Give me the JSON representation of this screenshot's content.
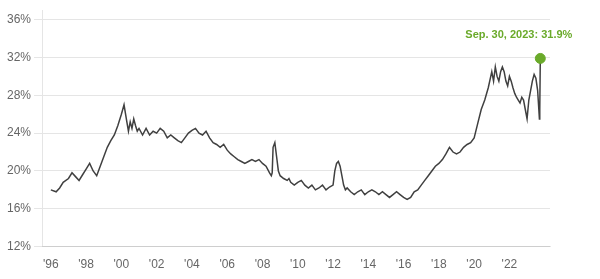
{
  "chart_data": {
    "type": "line",
    "x": [
      1996.0,
      1996.3,
      1996.5,
      1996.7,
      1997.0,
      1997.2,
      1997.4,
      1997.6,
      1997.8,
      1998.0,
      1998.2,
      1998.4,
      1998.6,
      1998.8,
      1999.0,
      1999.2,
      1999.4,
      1999.6,
      1999.8,
      2000.0,
      2000.15,
      2000.3,
      2000.4,
      2000.5,
      2000.6,
      2000.7,
      2000.8,
      2000.9,
      2001.0,
      2001.2,
      2001.4,
      2001.6,
      2001.8,
      2002.0,
      2002.2,
      2002.4,
      2002.6,
      2002.8,
      2003.0,
      2003.2,
      2003.4,
      2003.6,
      2003.8,
      2004.0,
      2004.2,
      2004.4,
      2004.6,
      2004.8,
      2005.0,
      2005.2,
      2005.4,
      2005.6,
      2005.8,
      2006.0,
      2006.2,
      2006.4,
      2006.6,
      2006.8,
      2007.0,
      2007.2,
      2007.4,
      2007.6,
      2007.8,
      2008.0,
      2008.2,
      2008.4,
      2008.5,
      2008.55,
      2008.6,
      2008.7,
      2008.8,
      2008.9,
      2009.0,
      2009.2,
      2009.4,
      2009.5,
      2009.6,
      2009.8,
      2010.0,
      2010.2,
      2010.4,
      2010.6,
      2010.8,
      2011.0,
      2011.2,
      2011.4,
      2011.6,
      2011.8,
      2012.0,
      2012.1,
      2012.2,
      2012.3,
      2012.4,
      2012.5,
      2012.6,
      2012.7,
      2012.8,
      2013.0,
      2013.2,
      2013.4,
      2013.6,
      2013.8,
      2014.0,
      2014.2,
      2014.4,
      2014.6,
      2014.8,
      2015.0,
      2015.2,
      2015.4,
      2015.6,
      2015.8,
      2016.0,
      2016.2,
      2016.4,
      2016.6,
      2016.8,
      2017.0,
      2017.2,
      2017.4,
      2017.6,
      2017.8,
      2018.0,
      2018.2,
      2018.4,
      2018.6,
      2018.8,
      2019.0,
      2019.2,
      2019.4,
      2019.6,
      2019.8,
      2020.0,
      2020.2,
      2020.4,
      2020.6,
      2020.8,
      2021.0,
      2021.1,
      2021.2,
      2021.3,
      2021.4,
      2021.5,
      2021.6,
      2021.7,
      2021.8,
      2021.9,
      2022.0,
      2022.1,
      2022.2,
      2022.3,
      2022.4,
      2022.5,
      2022.6,
      2022.7,
      2022.8,
      2022.9,
      2023.0,
      2023.1,
      2023.2,
      2023.3,
      2023.4,
      2023.5,
      2023.6,
      2023.65,
      2023.7,
      2023.72,
      2023.75
    ],
    "series": [
      {
        "color": "#404040",
        "values": [
          18.0,
          17.8,
          18.2,
          18.8,
          19.2,
          19.8,
          19.4,
          19.0,
          19.6,
          20.2,
          20.8,
          20.0,
          19.5,
          20.5,
          21.5,
          22.5,
          23.2,
          23.8,
          24.8,
          26.0,
          27.0,
          25.3,
          24.2,
          25.2,
          24.5,
          25.5,
          24.8,
          24.2,
          24.5,
          23.8,
          24.5,
          23.8,
          24.2,
          24.0,
          24.5,
          24.2,
          23.5,
          23.8,
          23.5,
          23.2,
          23.0,
          23.5,
          24.0,
          24.3,
          24.5,
          24.0,
          23.8,
          24.2,
          23.5,
          23.0,
          22.8,
          22.5,
          22.8,
          22.2,
          21.8,
          21.5,
          21.2,
          21.0,
          20.8,
          21.0,
          21.2,
          21.0,
          21.2,
          20.8,
          20.5,
          19.8,
          19.5,
          19.8,
          22.5,
          23.0,
          21.5,
          20.0,
          19.5,
          19.2,
          19.0,
          19.2,
          18.8,
          18.5,
          18.8,
          19.0,
          18.5,
          18.2,
          18.5,
          18.0,
          18.2,
          18.5,
          18.0,
          18.3,
          18.5,
          20.0,
          20.8,
          21.0,
          20.5,
          19.5,
          18.5,
          18.0,
          18.2,
          17.8,
          17.5,
          17.8,
          18.0,
          17.5,
          17.8,
          18.0,
          17.8,
          17.5,
          17.8,
          17.5,
          17.2,
          17.5,
          17.8,
          17.5,
          17.2,
          17.0,
          17.2,
          17.8,
          18.0,
          18.5,
          19.0,
          19.5,
          20.0,
          20.5,
          20.8,
          21.2,
          21.8,
          22.5,
          22.0,
          21.8,
          22.0,
          22.5,
          22.8,
          23.0,
          23.5,
          25.0,
          26.5,
          27.5,
          28.8,
          30.5,
          29.5,
          31.0,
          30.0,
          29.5,
          30.5,
          31.0,
          30.5,
          29.5,
          29.0,
          30.0,
          29.5,
          28.8,
          28.2,
          27.8,
          27.5,
          27.2,
          27.8,
          27.5,
          26.5,
          25.5,
          27.5,
          28.5,
          29.5,
          30.2,
          29.8,
          28.5,
          27.0,
          25.5,
          26.5,
          31.9
        ]
      },
      {
        "type": "scatter",
        "marker": "circle",
        "color": "#6aaa2a",
        "x": [
          2023.75
        ],
        "values": [
          31.9
        ]
      }
    ],
    "xlim": [
      1995.5,
      2024.3
    ],
    "xticks": [
      {
        "value": 1996,
        "label": "'96"
      },
      {
        "value": 1998,
        "label": "'98"
      },
      {
        "value": 2000,
        "label": "'00"
      },
      {
        "value": 2002,
        "label": "'02"
      },
      {
        "value": 2004,
        "label": "'04"
      },
      {
        "value": 2006,
        "label": "'06"
      },
      {
        "value": 2008,
        "label": "'08"
      },
      {
        "value": 2010,
        "label": "'10"
      },
      {
        "value": 2012,
        "label": "'12"
      },
      {
        "value": 2014,
        "label": "'14"
      },
      {
        "value": 2016,
        "label": "'16"
      },
      {
        "value": 2018,
        "label": "'18"
      },
      {
        "value": 2020,
        "label": "'20"
      },
      {
        "value": 2022,
        "label": "'22"
      }
    ],
    "ylim": [
      12,
      37
    ],
    "yticks": [
      {
        "value": 12,
        "label": "12%"
      },
      {
        "value": 16,
        "label": "16%"
      },
      {
        "value": 20,
        "label": "20%"
      },
      {
        "value": 24,
        "label": "24%"
      },
      {
        "value": 28,
        "label": "28%"
      },
      {
        "value": 32,
        "label": "32%"
      },
      {
        "value": 36,
        "label": "36%"
      }
    ],
    "grid": "y",
    "annotations": [
      {
        "text": "Sep. 30, 2023: 31.9%",
        "x": 2019.5,
        "y": 35.0,
        "color": "#6aaa2a"
      }
    ]
  }
}
